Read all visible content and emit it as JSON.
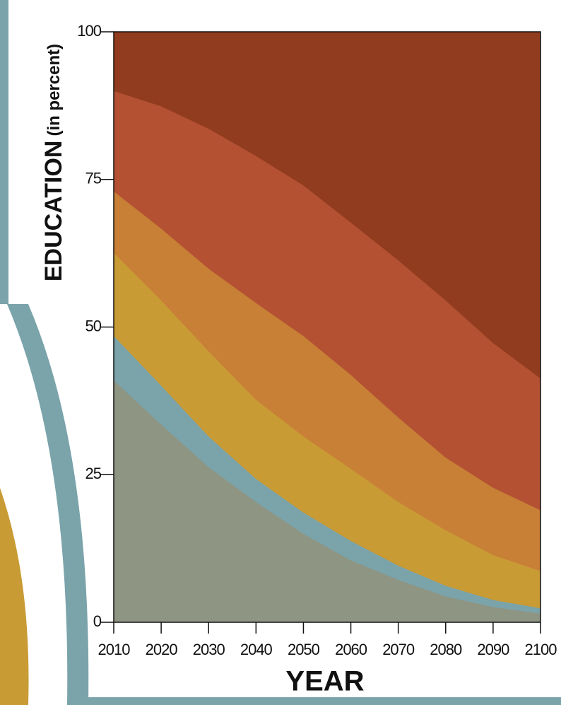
{
  "chart_data": {
    "type": "stacked-area",
    "x_label": "YEAR",
    "y_label": "EDUCATION",
    "y_label_unit": "(in percent)",
    "x": [
      2010,
      2020,
      2030,
      2040,
      2050,
      2060,
      2070,
      2080,
      2090,
      2100
    ],
    "xlim": [
      2010,
      2100
    ],
    "xticks": [
      2010,
      2020,
      2030,
      2040,
      2050,
      2060,
      2070,
      2080,
      2090,
      2100
    ],
    "ylim": [
      0,
      100
    ],
    "yticks": [
      0,
      25,
      50,
      75,
      100
    ],
    "series": [
      {
        "color": "#8e9583",
        "values": [
          41,
          33.5,
          26.3,
          20.4,
          15,
          10.5,
          7.2,
          4.4,
          2.6,
          1.5
        ]
      },
      {
        "color": "#7aa3aa",
        "values": [
          7.5,
          6.6,
          5.2,
          3.9,
          3.6,
          3.3,
          2.4,
          1.8,
          1.2,
          0.9
        ]
      },
      {
        "color": "#c99b34",
        "values": [
          14.1,
          14.4,
          14.4,
          13.4,
          12.9,
          12.2,
          10.8,
          9.4,
          7.6,
          6.3
        ]
      },
      {
        "color": "#c87f36",
        "values": [
          10.4,
          12.2,
          14,
          16.4,
          17,
          15.9,
          14.3,
          12.3,
          11.4,
          10.3
        ]
      },
      {
        "color": "#b35132",
        "values": [
          17,
          20.7,
          23.7,
          24.9,
          25.5,
          25.8,
          26.6,
          26.6,
          24.5,
          22.3
        ]
      },
      {
        "color": "#923c1f",
        "values": [
          10,
          12.6,
          16.4,
          21,
          26,
          32.3,
          38.7,
          45.5,
          52.7,
          58.7
        ]
      }
    ]
  }
}
